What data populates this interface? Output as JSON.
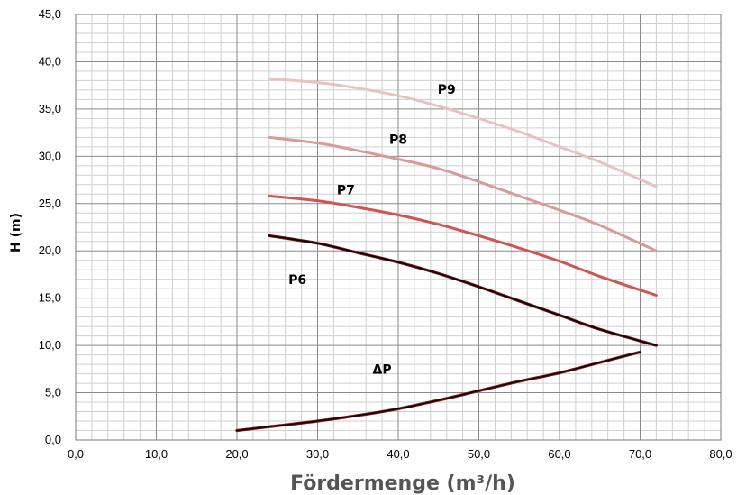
{
  "chart_data": {
    "type": "line",
    "xlabel": "Fördermenge (m³/h)",
    "ylabel": "H (m)",
    "xlim": [
      0,
      80
    ],
    "ylim": [
      0,
      45
    ],
    "x_ticks": [
      "0,0",
      "10,0",
      "20,0",
      "30,0",
      "40,0",
      "50,0",
      "60,0",
      "70,0",
      "80,0"
    ],
    "y_ticks": [
      "0,0",
      "5,0",
      "10,0",
      "15,0",
      "20,0",
      "25,0",
      "30,0",
      "35,0",
      "40,0",
      "45,0"
    ],
    "grid": true,
    "series": [
      {
        "name": "P9",
        "color": "#e8c2c2",
        "points": [
          [
            24,
            38.2
          ],
          [
            30,
            37.8
          ],
          [
            35,
            37.2
          ],
          [
            40,
            36.4
          ],
          [
            45,
            35.3
          ],
          [
            50,
            34.0
          ],
          [
            55,
            32.6
          ],
          [
            60,
            31.0
          ],
          [
            65,
            29.4
          ],
          [
            72,
            26.8
          ]
        ],
        "label_at": [
          46,
          36.6
        ]
      },
      {
        "name": "P8",
        "color": "#d99a9a",
        "points": [
          [
            24,
            32.0
          ],
          [
            30,
            31.4
          ],
          [
            35,
            30.6
          ],
          [
            40,
            29.7
          ],
          [
            45,
            28.7
          ],
          [
            50,
            27.3
          ],
          [
            55,
            25.8
          ],
          [
            60,
            24.3
          ],
          [
            65,
            22.7
          ],
          [
            72,
            20.0
          ]
        ],
        "label_at": [
          40,
          31.3
        ]
      },
      {
        "name": "P7",
        "color": "#cf5555",
        "points": [
          [
            24,
            25.8
          ],
          [
            30,
            25.3
          ],
          [
            35,
            24.6
          ],
          [
            40,
            23.8
          ],
          [
            45,
            22.8
          ],
          [
            50,
            21.6
          ],
          [
            55,
            20.3
          ],
          [
            60,
            18.9
          ],
          [
            65,
            17.3
          ],
          [
            72,
            15.3
          ]
        ],
        "label_at": [
          33.5,
          26.0
        ]
      },
      {
        "name": "P6",
        "color": "#6b0f0f",
        "points": [
          [
            24,
            21.6
          ],
          [
            30,
            20.8
          ],
          [
            35,
            19.8
          ],
          [
            40,
            18.8
          ],
          [
            45,
            17.6
          ],
          [
            50,
            16.2
          ],
          [
            55,
            14.7
          ],
          [
            60,
            13.2
          ],
          [
            65,
            11.7
          ],
          [
            72,
            10.0
          ]
        ],
        "label_at": [
          27.5,
          16.5
        ]
      },
      {
        "name": "ΔP",
        "color": "#7a1414",
        "points": [
          [
            20,
            1.0
          ],
          [
            25,
            1.5
          ],
          [
            30,
            2.0
          ],
          [
            35,
            2.6
          ],
          [
            40,
            3.3
          ],
          [
            45,
            4.2
          ],
          [
            50,
            5.2
          ],
          [
            55,
            6.2
          ],
          [
            60,
            7.1
          ],
          [
            65,
            8.2
          ],
          [
            70,
            9.3
          ]
        ],
        "label_at": [
          38,
          7.0
        ]
      }
    ]
  }
}
